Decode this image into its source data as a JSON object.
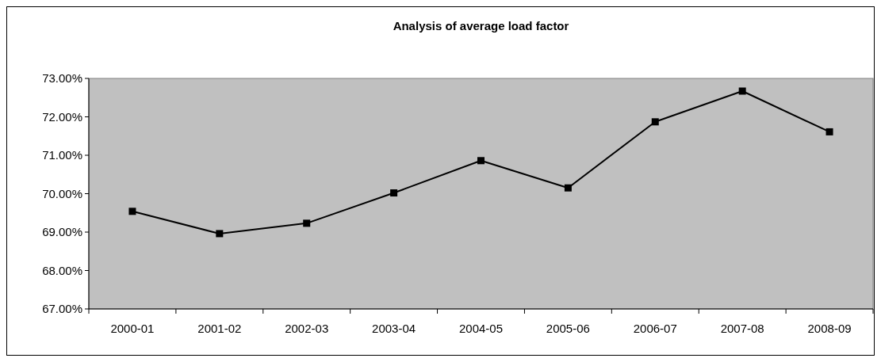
{
  "chart_data": {
    "type": "line",
    "title": "Analysis of average load factor",
    "categories": [
      "2000-01",
      "2001-02",
      "2002-03",
      "2003-04",
      "2004-05",
      "2005-06",
      "2006-07",
      "2007-08",
      "2008-09"
    ],
    "series": [
      {
        "color": "#000000",
        "values": [
          69.54,
          68.96,
          69.23,
          70.02,
          70.86,
          70.15,
          71.87,
          72.67,
          71.61
        ]
      }
    ],
    "ylim": [
      67,
      73
    ],
    "yticks": [
      {
        "value": 67,
        "label": "67.00%"
      },
      {
        "value": 68,
        "label": "68.00%"
      },
      {
        "value": 69,
        "label": "69.00%"
      },
      {
        "value": 70,
        "label": "70.00%"
      },
      {
        "value": 71,
        "label": "71.00%"
      },
      {
        "value": 72,
        "label": "72.00%"
      },
      {
        "value": 73,
        "label": "73.00%"
      }
    ],
    "marker": "square",
    "line_style": "solid"
  }
}
